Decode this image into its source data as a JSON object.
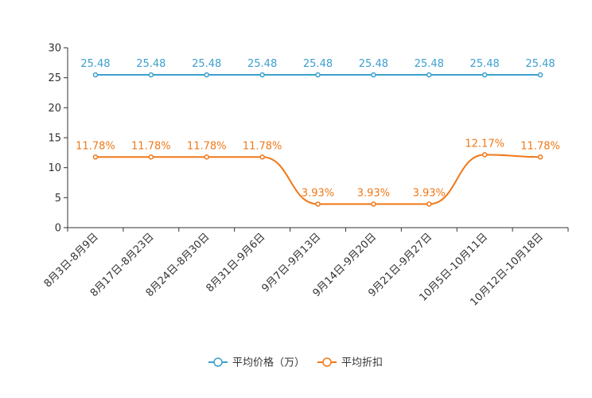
{
  "chart_data": {
    "type": "line",
    "title": "",
    "xlabel": "",
    "ylabel": "",
    "ylim": [
      0,
      30
    ],
    "yticks": [
      0,
      5,
      10,
      15,
      20,
      25,
      30
    ],
    "grid": false,
    "legend_position": "bottom",
    "categories": [
      "8月3日-8月9日",
      "8月17日-8月23日",
      "8月24日-8月30日",
      "8月31日-9月6日",
      "9月7日-9月13日",
      "9月14日-9月20日",
      "9月21日-9月27日",
      "10月5日-10月11日",
      "10月12日-10月18日"
    ],
    "series": [
      {
        "name": "平均价格（万）",
        "color": "#3ca0d0",
        "values": [
          25.48,
          25.48,
          25.48,
          25.48,
          25.48,
          25.48,
          25.48,
          25.48,
          25.48
        ],
        "labels": [
          "25.48",
          "25.48",
          "25.48",
          "25.48",
          "25.48",
          "25.48",
          "25.48",
          "25.48",
          "25.48"
        ],
        "smooth": false
      },
      {
        "name": "平均折扣",
        "color": "#f07818",
        "values": [
          11.78,
          11.78,
          11.78,
          11.78,
          3.93,
          3.93,
          3.93,
          12.17,
          11.78
        ],
        "labels": [
          "11.78%",
          "11.78%",
          "11.78%",
          "11.78%",
          "3.93%",
          "3.93%",
          "3.93%",
          "12.17%",
          "11.78%"
        ],
        "smooth": true
      }
    ]
  }
}
